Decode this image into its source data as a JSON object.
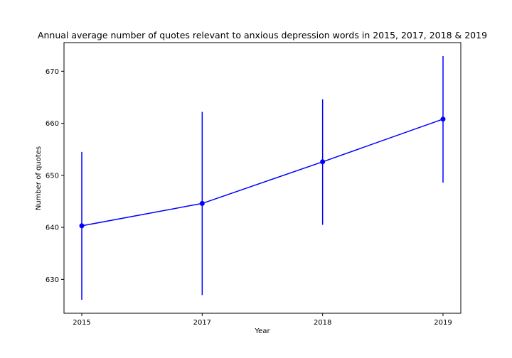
{
  "chart_data": {
    "type": "line",
    "title": "Annual average number of quotes relevant to anxious depression words in 2015, 2017, 2018 & 2019",
    "xlabel": "Year",
    "ylabel": "Number of quotes",
    "categories": [
      "2015",
      "2017",
      "2018",
      "2019"
    ],
    "series": [
      {
        "values": [
          640.3,
          644.6,
          652.6,
          660.8
        ],
        "error_low": [
          626.1,
          627.0,
          640.5,
          648.6
        ],
        "error_high": [
          654.5,
          662.2,
          664.6,
          672.9
        ],
        "color": "#0000ff",
        "marker": "circle"
      }
    ],
    "ylim": [
      623.5,
      675.5
    ],
    "yticks": [
      630,
      640,
      650,
      660,
      670
    ],
    "grid": false,
    "legend": false
  }
}
